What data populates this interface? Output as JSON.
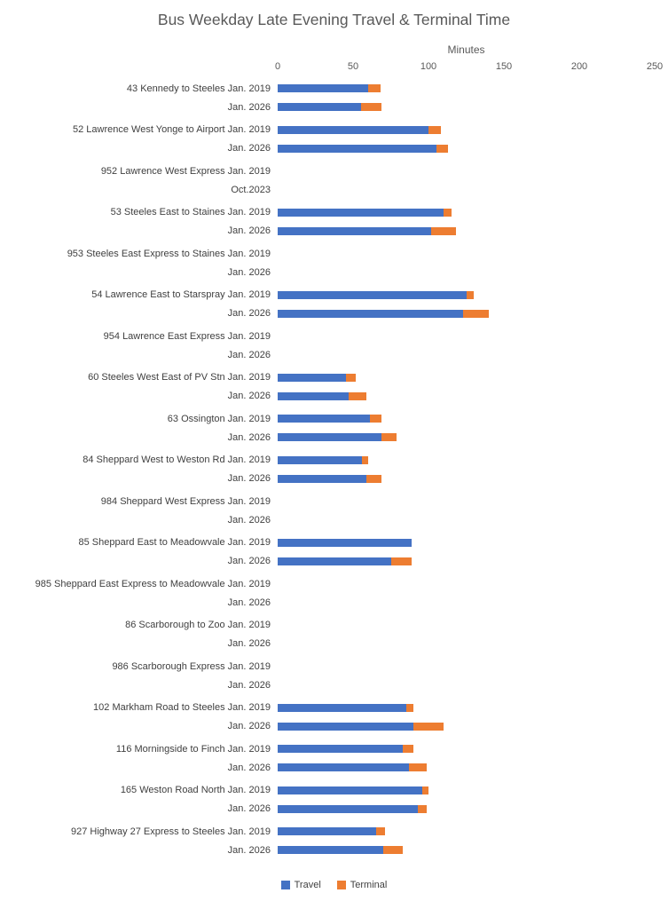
{
  "chart_data": {
    "type": "bar",
    "orientation": "horizontal",
    "stacked": true,
    "title": "Bus Weekday Late Evening Travel & Terminal Time",
    "xlabel": "Minutes",
    "xlim": [
      0,
      250
    ],
    "xticks": [
      0,
      50,
      100,
      150,
      200,
      250
    ],
    "grid": false,
    "legend_position": "bottom",
    "legend": [
      {
        "label": "Travel",
        "color": "#4472C4"
      },
      {
        "label": "Terminal",
        "color": "#ED7D31"
      }
    ],
    "groups": [
      {
        "rows": [
          {
            "label": "43 Kennedy to Steeles Jan. 2019",
            "travel": 60,
            "terminal": 8
          },
          {
            "label": "Jan. 2026",
            "travel": 55,
            "terminal": 14
          }
        ]
      },
      {
        "rows": [
          {
            "label": "52 Lawrence West Yonge to Airport Jan. 2019",
            "travel": 100,
            "terminal": 8
          },
          {
            "label": "Jan. 2026",
            "travel": 105,
            "terminal": 8
          }
        ]
      },
      {
        "rows": [
          {
            "label": "952 Lawrence West Express Jan. 2019",
            "travel": 0,
            "terminal": 0
          },
          {
            "label": "Oct.2023",
            "travel": 0,
            "terminal": 0
          }
        ]
      },
      {
        "rows": [
          {
            "label": "53 Steeles East to Staines Jan. 2019",
            "travel": 110,
            "terminal": 5
          },
          {
            "label": "Jan. 2026",
            "travel": 102,
            "terminal": 16
          }
        ]
      },
      {
        "rows": [
          {
            "label": "953 Steeles East Express to Staines Jan. 2019",
            "travel": 0,
            "terminal": 0
          },
          {
            "label": "Jan. 2026",
            "travel": 0,
            "terminal": 0
          }
        ]
      },
      {
        "rows": [
          {
            "label": "54 Lawrence East to Starspray Jan. 2019",
            "travel": 125,
            "terminal": 5
          },
          {
            "label": "Jan. 2026",
            "travel": 123,
            "terminal": 17
          }
        ]
      },
      {
        "rows": [
          {
            "label": "954 Lawrence East Express Jan. 2019",
            "travel": 0,
            "terminal": 0
          },
          {
            "label": "Jan. 2026",
            "travel": 0,
            "terminal": 0
          }
        ]
      },
      {
        "rows": [
          {
            "label": "60 Steeles West East of PV Stn Jan. 2019",
            "travel": 45,
            "terminal": 7
          },
          {
            "label": "Jan. 2026",
            "travel": 47,
            "terminal": 12
          }
        ]
      },
      {
        "rows": [
          {
            "label": "63 Ossington Jan. 2019",
            "travel": 61,
            "terminal": 8
          },
          {
            "label": "Jan. 2026",
            "travel": 69,
            "terminal": 10
          }
        ]
      },
      {
        "rows": [
          {
            "label": "84 Sheppard West to Weston Rd Jan. 2019",
            "travel": 56,
            "terminal": 4
          },
          {
            "label": "Jan. 2026",
            "travel": 59,
            "terminal": 10
          }
        ]
      },
      {
        "rows": [
          {
            "label": "984 Sheppard West Express Jan. 2019",
            "travel": 0,
            "terminal": 0
          },
          {
            "label": "Jan. 2026",
            "travel": 0,
            "terminal": 0
          }
        ]
      },
      {
        "rows": [
          {
            "label": "85 Sheppard East to Meadowvale Jan. 2019",
            "travel": 89,
            "terminal": 0
          },
          {
            "label": "Jan. 2026",
            "travel": 75,
            "terminal": 14
          }
        ]
      },
      {
        "rows": [
          {
            "label": "985 Sheppard East Express to Meadowvale Jan. 2019",
            "travel": 0,
            "terminal": 0
          },
          {
            "label": "Jan. 2026",
            "travel": 0,
            "terminal": 0
          }
        ]
      },
      {
        "rows": [
          {
            "label": "86 Scarborough to Zoo Jan. 2019",
            "travel": 0,
            "terminal": 0
          },
          {
            "label": "Jan. 2026",
            "travel": 0,
            "terminal": 0
          }
        ]
      },
      {
        "rows": [
          {
            "label": "986 Scarborough Express Jan. 2019",
            "travel": 0,
            "terminal": 0
          },
          {
            "label": "Jan. 2026",
            "travel": 0,
            "terminal": 0
          }
        ]
      },
      {
        "rows": [
          {
            "label": "102 Markham Road to Steeles Jan. 2019",
            "travel": 85,
            "terminal": 5
          },
          {
            "label": "Jan. 2026",
            "travel": 90,
            "terminal": 20
          }
        ]
      },
      {
        "rows": [
          {
            "label": "116 Morningside to Finch Jan. 2019",
            "travel": 83,
            "terminal": 7
          },
          {
            "label": "Jan. 2026",
            "travel": 87,
            "terminal": 12
          }
        ]
      },
      {
        "rows": [
          {
            "label": "165 Weston Road North Jan. 2019",
            "travel": 96,
            "terminal": 4
          },
          {
            "label": "Jan. 2026",
            "travel": 93,
            "terminal": 6
          }
        ]
      },
      {
        "rows": [
          {
            "label": "927 Highway 27 Express to Steeles Jan. 2019",
            "travel": 65,
            "terminal": 6
          },
          {
            "label": "Jan. 2026",
            "travel": 70,
            "terminal": 13
          }
        ]
      }
    ]
  }
}
